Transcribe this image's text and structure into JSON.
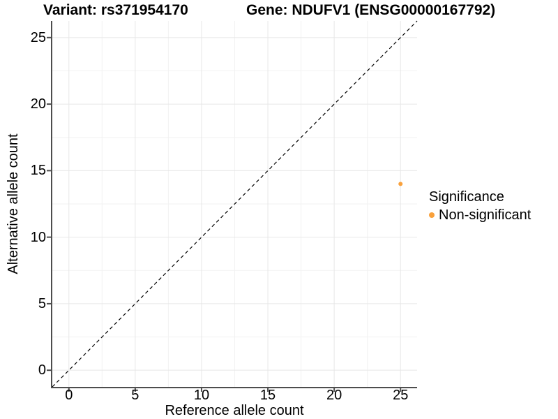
{
  "header": {
    "variant_title": "Variant: rs371954170",
    "gene_title": "Gene: NDUFV1 (ENSG00000167792)"
  },
  "chart_data": {
    "type": "scatter",
    "xlabel": "Reference allele count",
    "ylabel": "Alternative allele count",
    "xlim": [
      -1.25,
      26.25
    ],
    "ylim": [
      -1.25,
      26.25
    ],
    "x_ticks": [
      0,
      5,
      10,
      15,
      20,
      25
    ],
    "y_ticks": [
      0,
      5,
      10,
      15,
      20,
      25
    ],
    "x_minor": [
      2.5,
      7.5,
      12.5,
      17.5,
      22.5
    ],
    "y_minor": [
      2.5,
      7.5,
      12.5,
      17.5,
      22.5
    ],
    "grid": "major+minor",
    "points": [
      {
        "x": 25,
        "y": 14,
        "series": "Non-significant"
      }
    ],
    "identity_line": {
      "slope": 1,
      "intercept": 0,
      "style": "dashed",
      "color": "#000000"
    },
    "legend": {
      "title": "Significance",
      "position": "right",
      "items": [
        {
          "label": "Non-significant",
          "color": "#F9A13C"
        }
      ]
    },
    "colors": {
      "point": "#F9A13C",
      "axis": "#4d4d4d",
      "grid_major": "#e7e7e7",
      "grid_minor": "#f2f2f2"
    }
  }
}
